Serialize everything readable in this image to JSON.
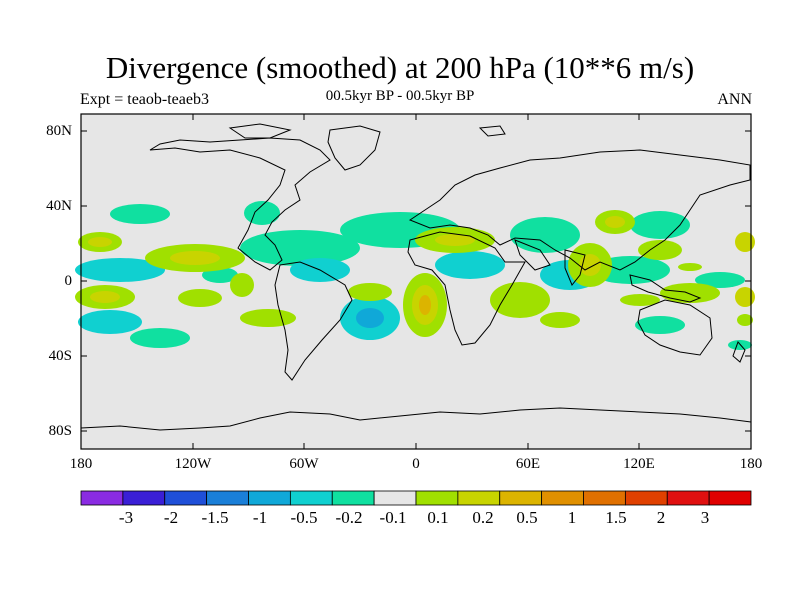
{
  "title": "Divergence (smoothed) at 200 hPa (10**6 m/s)",
  "subtitle_left": "Expt = teaob-teaeb3",
  "subtitle_center": "00.5kyr BP - 00.5kyr BP",
  "subtitle_right": "ANN",
  "axes": {
    "lat_labels": [
      "80N",
      "40N",
      "0",
      "40S",
      "80S"
    ],
    "lon_labels": [
      "180",
      "120W",
      "60W",
      "0",
      "60E",
      "120E",
      "180"
    ]
  },
  "colorbar": {
    "colors": [
      "#8a2be2",
      "#3a1fd6",
      "#1f4fd8",
      "#1a7fd8",
      "#10a8d8",
      "#10d0d0",
      "#10e0a0",
      "#e6e6e6",
      "#a0e000",
      "#c8d400",
      "#dcb400",
      "#e09000",
      "#e07000",
      "#e04000",
      "#e01010",
      "#e00000"
    ],
    "labels": [
      "-3",
      "-2",
      "-1.5",
      "-1",
      "-0.5",
      "-0.2",
      "-0.1",
      "0.1",
      "0.2",
      "0.5",
      "1",
      "1.5",
      "2",
      "3"
    ]
  },
  "colors": {
    "background": "#e6e6e6",
    "pos_low": "#a0e000",
    "pos_mid": "#c8d400",
    "pos_high": "#dcb400",
    "neg_low": "#10e0a0",
    "neg_mid": "#10d0d0",
    "neg_high": "#10a8d8"
  }
}
